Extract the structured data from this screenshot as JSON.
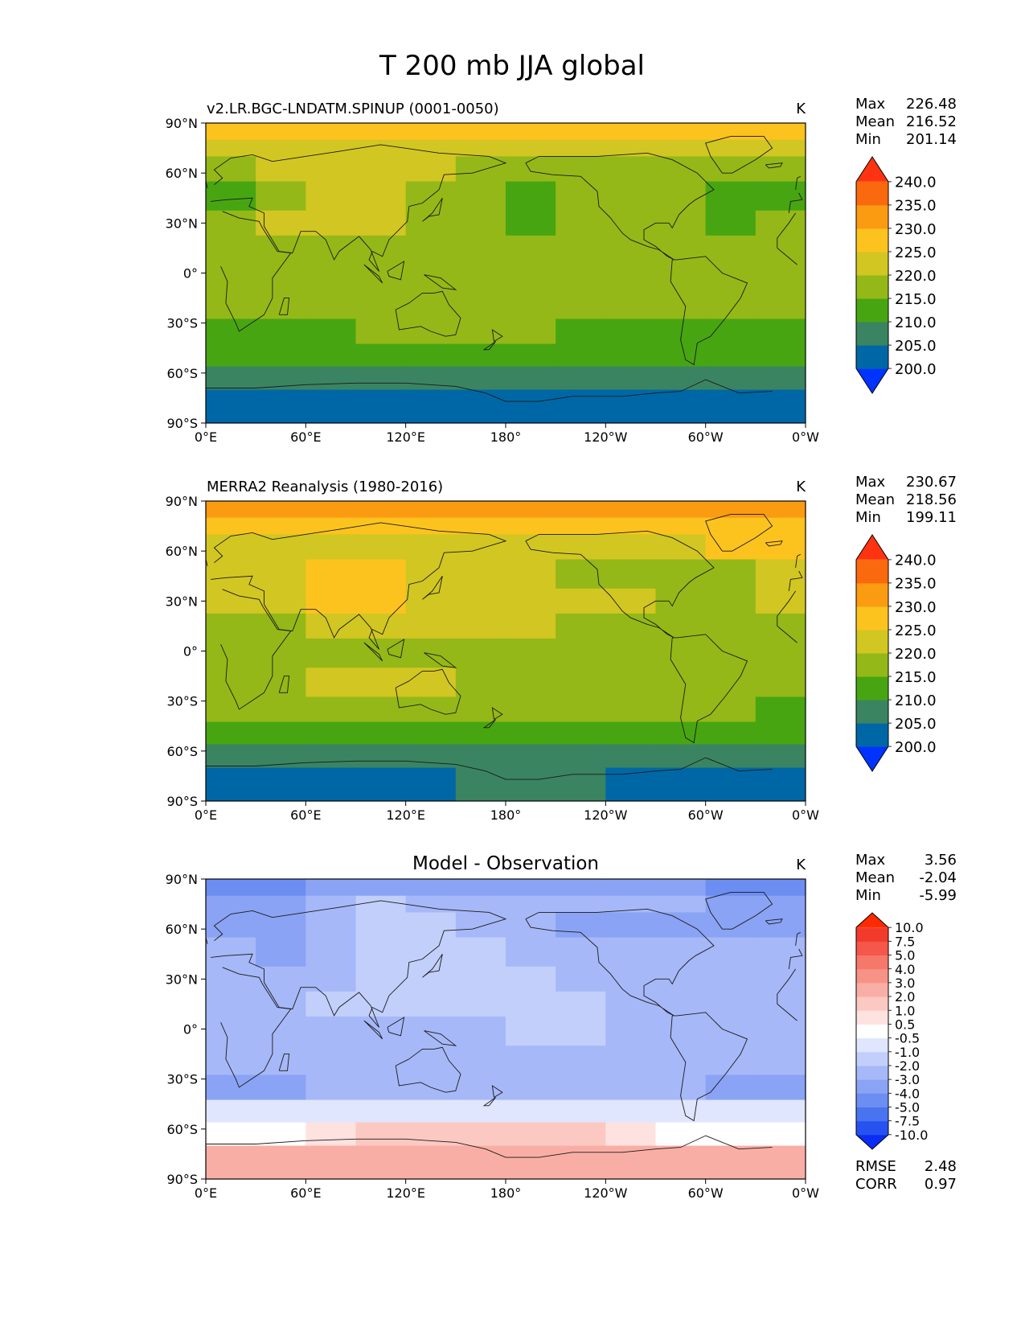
{
  "figure": {
    "title": "T 200 mb JJA global"
  },
  "axes": {
    "y_ticks": [
      "90°N",
      "60°N",
      "30°N",
      "0°",
      "30°S",
      "60°S",
      "90°S"
    ],
    "x_ticks": [
      "0°E",
      "60°E",
      "120°E",
      "180°",
      "120°W",
      "60°W",
      "0°W"
    ]
  },
  "stat_labels": {
    "max": "Max",
    "mean": "Mean",
    "min": "Min",
    "rmse": "RMSE",
    "corr": "CORR"
  },
  "chart_data": [
    {
      "type": "heatmap",
      "panel": "test",
      "title": "",
      "left_label": "v2.LR.BGC-LNDATM.SPINUP (0001-0050)",
      "units": "K",
      "stats": {
        "max": "226.48",
        "mean": "216.52",
        "min": "201.14"
      },
      "xlim": [
        0,
        360
      ],
      "ylim": [
        -90,
        90
      ],
      "colorbar": {
        "levels": [
          "200.0",
          "205.0",
          "210.0",
          "215.0",
          "220.0",
          "225.0",
          "230.0",
          "235.0",
          "240.0"
        ],
        "colors": [
          "#0033ff",
          "#0067a6",
          "#3a8462",
          "#47a512",
          "#94b817",
          "#d2c622",
          "#fcc31f",
          "#fb9b12",
          "#fb690e",
          "#ff3311"
        ],
        "extend": "both"
      },
      "field": [
        {
          "label": "85°N",
          "lat": 85,
          "values": [
            225,
            225,
            225,
            225,
            225,
            225,
            225,
            225,
            225,
            225,
            225,
            225
          ]
        },
        {
          "label": "75°N",
          "lat": 75,
          "values": [
            220,
            220,
            220,
            220,
            220,
            220,
            220,
            220,
            220,
            220,
            220,
            220
          ]
        },
        {
          "label": "65°N",
          "lat": 65,
          "values": [
            215,
            220,
            220,
            220,
            220,
            215,
            215,
            215,
            215,
            215,
            215,
            215
          ]
        },
        {
          "label": "45°N",
          "lat": 45,
          "values": [
            210,
            215,
            220,
            220,
            215,
            215,
            210,
            215,
            215,
            215,
            210,
            210
          ]
        },
        {
          "label": "30°N",
          "lat": 30,
          "values": [
            215,
            220,
            220,
            220,
            215,
            215,
            210,
            215,
            215,
            215,
            210,
            215
          ]
        },
        {
          "label": "15°N",
          "lat": 15,
          "values": [
            215,
            215,
            215,
            215,
            215,
            215,
            215,
            215,
            215,
            215,
            215,
            215
          ]
        },
        {
          "label": "0°",
          "lat": 0,
          "values": [
            215,
            215,
            215,
            215,
            215,
            215,
            215,
            215,
            215,
            215,
            215,
            215
          ]
        },
        {
          "label": "20°S",
          "lat": -20,
          "values": [
            215,
            215,
            215,
            215,
            215,
            215,
            215,
            215,
            215,
            215,
            215,
            215
          ]
        },
        {
          "label": "35°S",
          "lat": -35,
          "values": [
            210,
            210,
            210,
            215,
            215,
            215,
            215,
            210,
            210,
            210,
            210,
            210
          ]
        },
        {
          "label": "50°S",
          "lat": -50,
          "values": [
            210,
            210,
            210,
            210,
            210,
            210,
            210,
            210,
            210,
            210,
            210,
            210
          ]
        },
        {
          "label": "62°S",
          "lat": -62,
          "values": [
            205,
            205,
            205,
            205,
            205,
            205,
            205,
            205,
            205,
            205,
            205,
            205
          ]
        },
        {
          "label": "78°S",
          "lat": -78,
          "values": [
            200,
            200,
            200,
            200,
            200,
            200,
            200,
            200,
            200,
            200,
            200,
            200
          ]
        }
      ]
    },
    {
      "type": "heatmap",
      "panel": "reference",
      "title": "",
      "left_label": "MERRA2 Reanalysis (1980-2016)",
      "units": "K",
      "stats": {
        "max": "230.67",
        "mean": "218.56",
        "min": "199.11"
      },
      "xlim": [
        0,
        360
      ],
      "ylim": [
        -90,
        90
      ],
      "colorbar": {
        "levels": [
          "200.0",
          "205.0",
          "210.0",
          "215.0",
          "220.0",
          "225.0",
          "230.0",
          "235.0",
          "240.0"
        ],
        "colors": [
          "#0033ff",
          "#0067a6",
          "#3a8462",
          "#47a512",
          "#94b817",
          "#d2c622",
          "#fcc31f",
          "#fb9b12",
          "#fb690e",
          "#ff3311"
        ],
        "extend": "both"
      },
      "field": [
        {
          "label": "85°N",
          "lat": 85,
          "values": [
            230,
            230,
            230,
            230,
            230,
            230,
            230,
            230,
            230,
            230,
            230,
            230
          ]
        },
        {
          "label": "75°N",
          "lat": 75,
          "values": [
            225,
            225,
            225,
            225,
            225,
            225,
            225,
            225,
            225,
            225,
            225,
            225
          ]
        },
        {
          "label": "65°N",
          "lat": 65,
          "values": [
            220,
            220,
            220,
            220,
            220,
            220,
            220,
            220,
            220,
            220,
            225,
            225
          ]
        },
        {
          "label": "45°N",
          "lat": 45,
          "values": [
            220,
            220,
            225,
            225,
            220,
            220,
            220,
            215,
            215,
            215,
            215,
            220
          ]
        },
        {
          "label": "30°N",
          "lat": 30,
          "values": [
            220,
            220,
            225,
            225,
            220,
            220,
            220,
            220,
            220,
            215,
            215,
            220
          ]
        },
        {
          "label": "15°N",
          "lat": 15,
          "values": [
            215,
            215,
            220,
            220,
            220,
            220,
            220,
            215,
            215,
            215,
            215,
            215
          ]
        },
        {
          "label": "0°",
          "lat": 0,
          "values": [
            215,
            215,
            215,
            215,
            215,
            215,
            215,
            215,
            215,
            215,
            215,
            215
          ]
        },
        {
          "label": "20°S",
          "lat": -20,
          "values": [
            215,
            215,
            220,
            220,
            220,
            215,
            215,
            215,
            215,
            215,
            215,
            215
          ]
        },
        {
          "label": "35°S",
          "lat": -35,
          "values": [
            215,
            215,
            215,
            215,
            215,
            215,
            215,
            215,
            215,
            215,
            215,
            210
          ]
        },
        {
          "label": "50°S",
          "lat": -50,
          "values": [
            210,
            210,
            210,
            210,
            210,
            210,
            210,
            210,
            210,
            210,
            210,
            210
          ]
        },
        {
          "label": "62°S",
          "lat": -62,
          "values": [
            205,
            205,
            205,
            205,
            205,
            205,
            205,
            205,
            205,
            205,
            205,
            205
          ]
        },
        {
          "label": "78°S",
          "lat": -78,
          "values": [
            200,
            200,
            200,
            200,
            200,
            205,
            205,
            205,
            200,
            200,
            200,
            200
          ]
        }
      ]
    },
    {
      "type": "heatmap",
      "panel": "difference",
      "title": "Model - Observation",
      "left_label": "",
      "units": "K",
      "stats": {
        "max": "3.56",
        "mean": "-2.04",
        "min": "-5.99",
        "rmse": "2.48",
        "corr": "0.97"
      },
      "xlim": [
        0,
        360
      ],
      "ylim": [
        -90,
        90
      ],
      "colorbar": {
        "levels": [
          "-10.0",
          "-7.5",
          "-5.0",
          "-4.0",
          "-3.0",
          "-2.0",
          "-1.0",
          "-0.5",
          "0.5",
          "1.0",
          "2.0",
          "3.0",
          "4.0",
          "5.0",
          "7.5",
          "10.0"
        ],
        "colors": [
          "#0a2cf5",
          "#2552f0",
          "#4a74ef",
          "#6c8df2",
          "#8aa3f4",
          "#a6b8f8",
          "#c2cffb",
          "#dfe6fe",
          "#ffffff",
          "#fde2df",
          "#fbc9c2",
          "#f9aea5",
          "#f79386",
          "#f6786a",
          "#f5574a",
          "#f23a2c",
          "#ff2a00"
        ],
        "extend": "both"
      },
      "field": [
        {
          "label": "85°N",
          "lat": 85,
          "values": [
            -5,
            -5,
            -4,
            -4,
            -4,
            -4,
            -4,
            -4,
            -4,
            -4,
            -5,
            -5
          ]
        },
        {
          "label": "75°N",
          "lat": 75,
          "values": [
            -4,
            -4,
            -3,
            -2,
            -3,
            -3,
            -3,
            -3,
            -3,
            -3,
            -4,
            -4
          ]
        },
        {
          "label": "65°N",
          "lat": 65,
          "values": [
            -4,
            -4,
            -3,
            -2,
            -2,
            -3,
            -3,
            -4,
            -4,
            -4,
            -4,
            -4
          ]
        },
        {
          "label": "45°N",
          "lat": 45,
          "values": [
            -3,
            -4,
            -3,
            -2,
            -2,
            -2,
            -3,
            -3,
            -3,
            -3,
            -3,
            -3
          ]
        },
        {
          "label": "30°N",
          "lat": 30,
          "values": [
            -3,
            -3,
            -3,
            -2,
            -2,
            -2,
            -2,
            -3,
            -3,
            -3,
            -3,
            -3
          ]
        },
        {
          "label": "15°N",
          "lat": 15,
          "values": [
            -3,
            -3,
            -2,
            -2,
            -2,
            -2,
            -2,
            -2,
            -3,
            -3,
            -3,
            -3
          ]
        },
        {
          "label": "0°",
          "lat": 0,
          "values": [
            -3,
            -3,
            -3,
            -3,
            -3,
            -3,
            -2,
            -2,
            -3,
            -3,
            -3,
            -3
          ]
        },
        {
          "label": "20°S",
          "lat": -20,
          "values": [
            -3,
            -3,
            -3,
            -3,
            -3,
            -3,
            -3,
            -3,
            -3,
            -3,
            -3,
            -3
          ]
        },
        {
          "label": "35°S",
          "lat": -35,
          "values": [
            -4,
            -4,
            -3,
            -3,
            -3,
            -3,
            -3,
            -3,
            -3,
            -3,
            -4,
            -4
          ]
        },
        {
          "label": "50°S",
          "lat": -50,
          "values": [
            -1,
            -1,
            -1,
            -1,
            -1,
            -1,
            -1,
            -1,
            -1,
            -1,
            -1,
            -1
          ]
        },
        {
          "label": "62°S",
          "lat": -62,
          "values": [
            0,
            0,
            0.5,
            1.5,
            1.5,
            1.5,
            1,
            1,
            0.5,
            0,
            0,
            0
          ]
        },
        {
          "label": "78°S",
          "lat": -78,
          "values": [
            2.5,
            2.5,
            2,
            2,
            2,
            2,
            2,
            2,
            2,
            2,
            2.5,
            2.5
          ]
        }
      ]
    }
  ]
}
